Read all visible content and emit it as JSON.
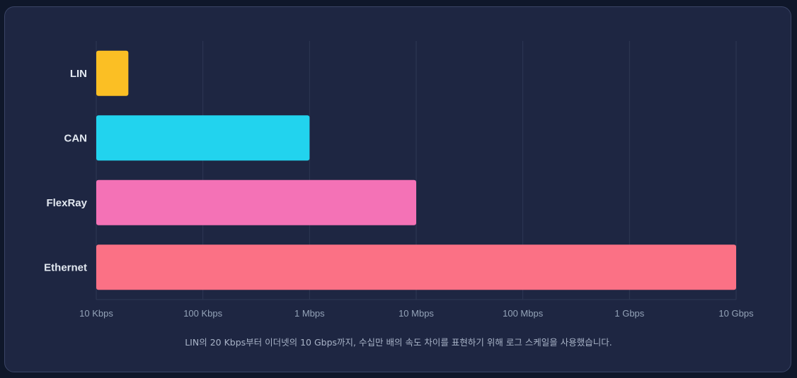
{
  "chart_data": {
    "type": "bar",
    "orientation": "horizontal",
    "categories": [
      "LIN",
      "CAN",
      "FlexRay",
      "Ethernet"
    ],
    "values": [
      20000,
      1000000,
      10000000,
      10000000000
    ],
    "value_unit": "bps",
    "colors": [
      "#fbbf24",
      "#22d3ee",
      "#f472b6",
      "#fb7185"
    ],
    "x_scale": "log",
    "xlim": [
      10000,
      10000000000
    ],
    "x_ticks": [
      {
        "value": 10000,
        "label": "10 Kbps"
      },
      {
        "value": 100000,
        "label": "100 Kbps"
      },
      {
        "value": 1000000,
        "label": "1 Mbps"
      },
      {
        "value": 10000000,
        "label": "10 Mbps"
      },
      {
        "value": 100000000,
        "label": "100 Mbps"
      },
      {
        "value": 1000000000,
        "label": "1 Gbps"
      },
      {
        "value": 10000000000,
        "label": "10 Gbps"
      }
    ],
    "grid": "vertical",
    "legend": "none",
    "caption": "LIN의 20 Kbps부터 이더넷의 10 Gbps까지, 수십만 배의 속도 차이를 표현하기 위해 로그 스케일을 사용했습니다."
  }
}
